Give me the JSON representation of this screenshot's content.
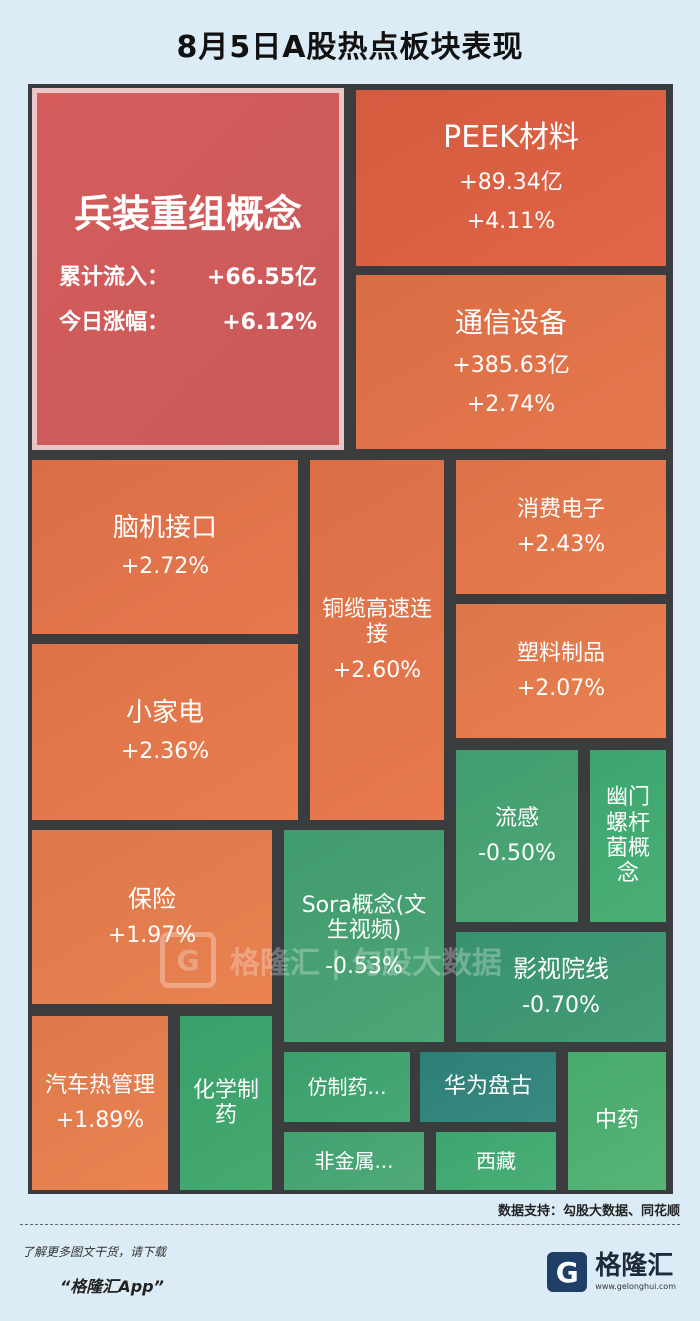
{
  "title": "8月5日A股热点板块表现",
  "source": "数据支持：勾股大数据、同花顺",
  "footer": {
    "line1": "了解更多图文干货，请下载",
    "line2": "“格隆汇App”",
    "brand_name": "格隆汇",
    "brand_url": "www.gelonghui.com",
    "brand_glyph": "G"
  },
  "watermark": {
    "logo_glyph": "G",
    "text": "格隆汇 | 勾股大数据"
  },
  "featured": {
    "name": "兵装重组概念",
    "inflow_label": "累计流入：",
    "inflow_value": "+66.55亿",
    "change_label": "今日涨幅：",
    "change_value": "+6.12%"
  },
  "chart_data": {
    "type": "treemap",
    "title": "8月5日A股热点板块表现",
    "tiles": [
      {
        "name": "兵装重组概念",
        "inflow": "+66.55亿",
        "change": "+6.12%",
        "change_pct": 6.12
      },
      {
        "name": "PEEK材料",
        "inflow": "+89.34亿",
        "change": "+4.11%",
        "change_pct": 4.11
      },
      {
        "name": "通信设备",
        "inflow": "+385.63亿",
        "change": "+2.74%",
        "change_pct": 2.74
      },
      {
        "name": "脑机接口",
        "change": "+2.72%",
        "change_pct": 2.72
      },
      {
        "name": "铜缆高速连\n接",
        "change": "+2.60%",
        "change_pct": 2.6
      },
      {
        "name": "消费电子",
        "change": "+2.43%",
        "change_pct": 2.43
      },
      {
        "name": "塑料制品",
        "change": "+2.07%",
        "change_pct": 2.07
      },
      {
        "name": "小家电",
        "change": "+2.36%",
        "change_pct": 2.36
      },
      {
        "name": "流感",
        "change": "-0.50%",
        "change_pct": -0.5
      },
      {
        "name": "幽门\n螺杆\n菌概\n念",
        "change": "",
        "change_pct": null
      },
      {
        "name": "保险",
        "change": "+1.97%",
        "change_pct": 1.97
      },
      {
        "name": "Sora概念(文\n生视频)",
        "change": "-0.53%",
        "change_pct": -0.53
      },
      {
        "name": "影视院线",
        "change": "-0.70%",
        "change_pct": -0.7
      },
      {
        "name": "汽车热管理",
        "change": "+1.89%",
        "change_pct": 1.89
      },
      {
        "name": "化学制\n药",
        "change": "",
        "change_pct": null
      },
      {
        "name": "仿制药...",
        "change": "",
        "change_pct": null
      },
      {
        "name": "华为盘古",
        "change": "",
        "change_pct": null
      },
      {
        "name": "中药",
        "change": "",
        "change_pct": null
      },
      {
        "name": "非金属...",
        "change": "",
        "change_pct": null
      },
      {
        "name": "西藏",
        "change": "",
        "change_pct": null
      }
    ]
  }
}
